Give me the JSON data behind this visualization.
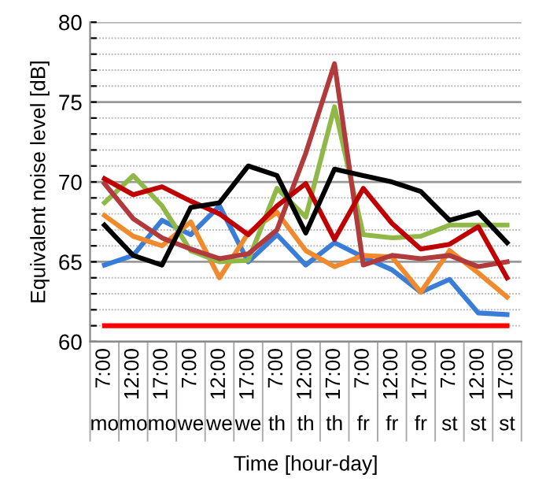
{
  "chart_data": {
    "type": "line",
    "xlabel": "Time [hour-day]",
    "ylabel": "Equivalent noise level [dB]",
    "categories": [
      "7:00 mo",
      "12:00 mo",
      "17:00 mo",
      "7:00 we",
      "12:00 we",
      "17:00 we",
      "7:00 th",
      "12:00 th",
      "17:00 th",
      "7:00 fr",
      "12:00 fr",
      "17:00 fr",
      "7:00 st",
      "12:00 st",
      "17:00 st"
    ],
    "series": [
      {
        "color": "#3a7dd8",
        "values": [
          64.8,
          65.4,
          67.6,
          66.7,
          68.5,
          65.0,
          66.7,
          64.8,
          66.2,
          65.3,
          64.5,
          63.1,
          63.9,
          61.8,
          61.7
        ]
      },
      {
        "color": "#f08a2c",
        "values": [
          67.9,
          66.6,
          66.0,
          67.5,
          64.0,
          66.8,
          68.1,
          65.7,
          64.7,
          65.4,
          65.3,
          63.1,
          65.7,
          64.3,
          62.8
        ]
      },
      {
        "color": "#8fb848",
        "values": [
          68.7,
          70.4,
          68.5,
          65.7,
          65.0,
          65.1,
          69.6,
          67.8,
          74.7,
          66.7,
          66.5,
          66.6,
          67.3,
          67.3,
          67.3
        ]
      },
      {
        "color": "#b03a3c",
        "values": [
          69.9,
          67.7,
          66.5,
          65.8,
          65.2,
          65.5,
          67.0,
          71.8,
          77.4,
          64.8,
          65.4,
          65.2,
          65.4,
          64.7,
          65.0
        ]
      },
      {
        "color": "#c00000",
        "values": [
          70.2,
          69.2,
          69.7,
          68.8,
          68.0,
          66.7,
          68.5,
          69.9,
          66.4,
          69.6,
          67.4,
          65.8,
          66.1,
          67.2,
          64.0
        ]
      },
      {
        "color": "#000000",
        "values": [
          67.3,
          65.4,
          64.8,
          68.4,
          68.7,
          71.0,
          70.4,
          66.8,
          70.8,
          70.4,
          70.0,
          69.4,
          67.6,
          68.1,
          66.2
        ]
      },
      {
        "color": "#ff0000",
        "values": [
          61,
          61,
          61,
          61,
          61,
          61,
          61,
          61,
          61,
          61,
          61,
          61,
          61,
          61,
          61
        ]
      }
    ],
    "ylim": [
      60,
      80
    ],
    "yticks": [
      60,
      {
        "value": 61,
        "label": null
      },
      {
        "value": 62,
        "label": null
      },
      {
        "value": 63,
        "label": null
      },
      {
        "value": 64,
        "label": null
      },
      65,
      {
        "value": 66,
        "label": null
      },
      {
        "value": 67,
        "label": null
      },
      {
        "value": 68,
        "label": null
      },
      {
        "value": 69,
        "label": null
      },
      70,
      {
        "value": 71,
        "label": null
      },
      {
        "value": 72,
        "label": null
      },
      {
        "value": 73,
        "label": null
      },
      {
        "value": 74,
        "label": null
      },
      75,
      {
        "value": 76,
        "label": null
      },
      {
        "value": 77,
        "label": null
      },
      {
        "value": 78,
        "label": null
      },
      {
        "value": 79,
        "label": null
      },
      80
    ],
    "grid": "y",
    "legend": false,
    "marker": "none",
    "line_style": "solid"
  }
}
